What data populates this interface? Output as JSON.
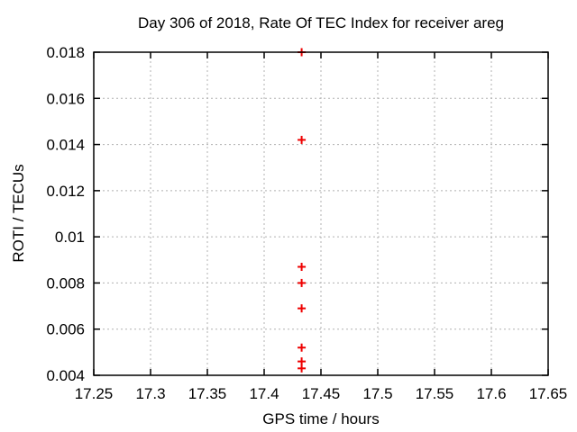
{
  "window": {
    "background": "#ffffff"
  },
  "chart_data": {
    "type": "scatter",
    "title": "Day 306 of 2018, Rate Of TEC Index for receiver areg",
    "xlabel": "GPS time / hours",
    "ylabel": "ROTI / TECUs",
    "xlim": [
      17.25,
      17.65
    ],
    "ylim": [
      0.004,
      0.018
    ],
    "xticks": {
      "values": [
        17.25,
        17.3,
        17.35,
        17.4,
        17.45,
        17.5,
        17.55,
        17.6,
        17.65
      ],
      "labels": [
        "17.25",
        "17.3",
        "17.35",
        "17.4",
        "17.45",
        "17.5",
        "17.55",
        "17.6",
        "17.65"
      ]
    },
    "yticks": {
      "values": [
        0.004,
        0.006,
        0.008,
        0.01,
        0.012,
        0.014,
        0.016,
        0.018
      ],
      "labels": [
        "0.004",
        "0.006",
        "0.008",
        "0.01",
        "0.012",
        "0.014",
        "0.016",
        "0.018"
      ]
    },
    "grid": true,
    "legend": "none",
    "series": [
      {
        "name": "ROTI",
        "marker": "plus",
        "color": "#ee0000",
        "points": [
          {
            "x": 17.433,
            "y": 0.018
          },
          {
            "x": 17.433,
            "y": 0.0142
          },
          {
            "x": 17.433,
            "y": 0.0087
          },
          {
            "x": 17.433,
            "y": 0.008
          },
          {
            "x": 17.433,
            "y": 0.0069
          },
          {
            "x": 17.433,
            "y": 0.0052
          },
          {
            "x": 17.433,
            "y": 0.0046
          },
          {
            "x": 17.433,
            "y": 0.0043
          }
        ]
      }
    ],
    "colors": {
      "text": "#000000",
      "axis": "#000000",
      "grid": "#b0b0b0"
    }
  }
}
